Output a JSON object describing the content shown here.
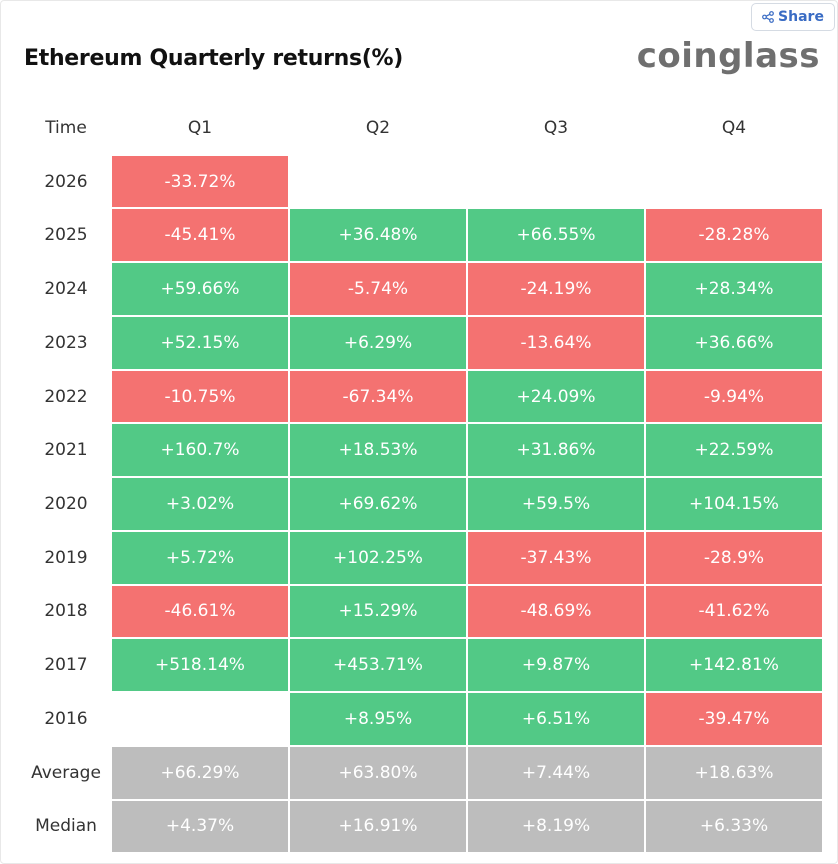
{
  "header": {
    "share_label": "Share",
    "title": "Ethereum Quarterly returns(%)",
    "brand": "coinglass"
  },
  "colors": {
    "positive": "#52c986",
    "negative": "#f47271",
    "summary": "#bdbdbd"
  },
  "chart_data": {
    "type": "heatmap",
    "title": "Ethereum Quarterly returns(%)",
    "row_header": "Time",
    "columns": [
      "Q1",
      "Q2",
      "Q3",
      "Q4"
    ],
    "rows": [
      {
        "label": "2026",
        "values": [
          "-33.72%",
          "",
          "",
          ""
        ]
      },
      {
        "label": "2025",
        "values": [
          "-45.41%",
          "+36.48%",
          "+66.55%",
          "-28.28%"
        ]
      },
      {
        "label": "2024",
        "values": [
          "+59.66%",
          "-5.74%",
          "-24.19%",
          "+28.34%"
        ]
      },
      {
        "label": "2023",
        "values": [
          "+52.15%",
          "+6.29%",
          "-13.64%",
          "+36.66%"
        ]
      },
      {
        "label": "2022",
        "values": [
          "-10.75%",
          "-67.34%",
          "+24.09%",
          "-9.94%"
        ]
      },
      {
        "label": "2021",
        "values": [
          "+160.7%",
          "+18.53%",
          "+31.86%",
          "+22.59%"
        ]
      },
      {
        "label": "2020",
        "values": [
          "+3.02%",
          "+69.62%",
          "+59.5%",
          "+104.15%"
        ]
      },
      {
        "label": "2019",
        "values": [
          "+5.72%",
          "+102.25%",
          "-37.43%",
          "-28.9%"
        ]
      },
      {
        "label": "2018",
        "values": [
          "-46.61%",
          "+15.29%",
          "-48.69%",
          "-41.62%"
        ]
      },
      {
        "label": "2017",
        "values": [
          "+518.14%",
          "+453.71%",
          "+9.87%",
          "+142.81%"
        ]
      },
      {
        "label": "2016",
        "values": [
          "",
          "+8.95%",
          "+6.51%",
          "-39.47%"
        ]
      }
    ],
    "summary_rows": [
      {
        "label": "Average",
        "values": [
          "+66.29%",
          "+63.80%",
          "+7.44%",
          "+18.63%"
        ]
      },
      {
        "label": "Median",
        "values": [
          "+4.37%",
          "+16.91%",
          "+8.19%",
          "+6.33%"
        ]
      }
    ]
  }
}
